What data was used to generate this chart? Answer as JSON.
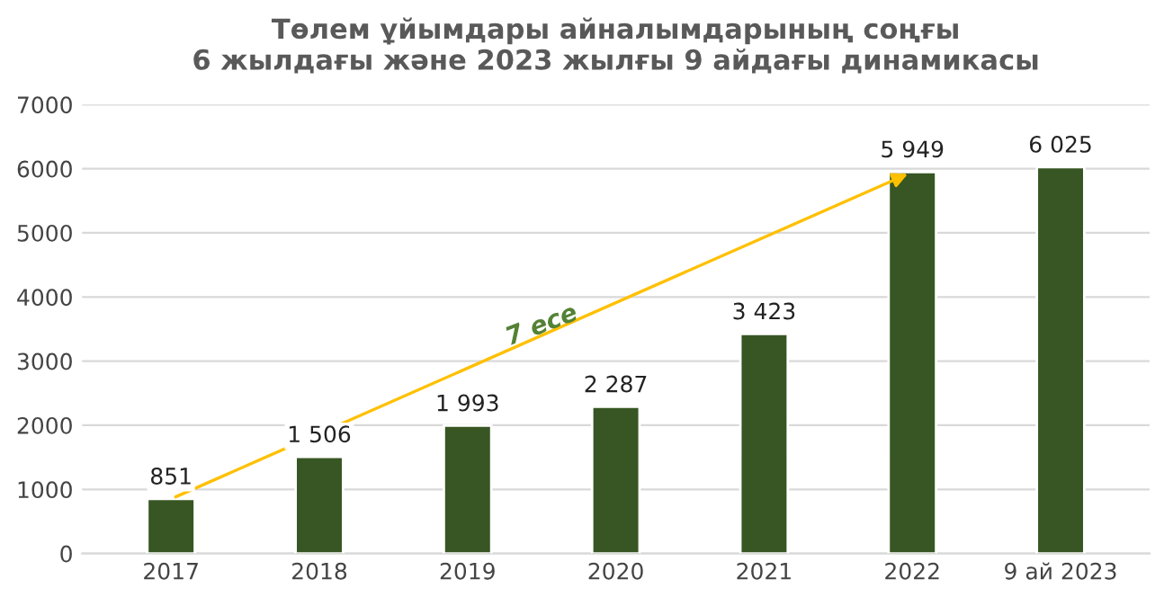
{
  "chart_data": {
    "type": "bar",
    "title": "Төлем ұйымдары айналымдарының соңғы\n6 жылдағы және 2023 жылғы 9 айдағы динамикасы",
    "categories": [
      "2017",
      "2018",
      "2019",
      "2020",
      "2021",
      "2022",
      "9 ай 2023"
    ],
    "values": [
      851,
      1506,
      1993,
      2287,
      3423,
      5949,
      6025
    ],
    "value_labels": [
      "851",
      "1 506",
      "1 993",
      "2 287",
      "3 423",
      "5 949",
      "6 025"
    ],
    "color": "#375623",
    "ylim": [
      0,
      7000
    ],
    "yticks": [
      0,
      1000,
      2000,
      3000,
      4000,
      5000,
      6000,
      7000
    ],
    "grid": "y",
    "annotations": [
      "7 есе"
    ]
  }
}
